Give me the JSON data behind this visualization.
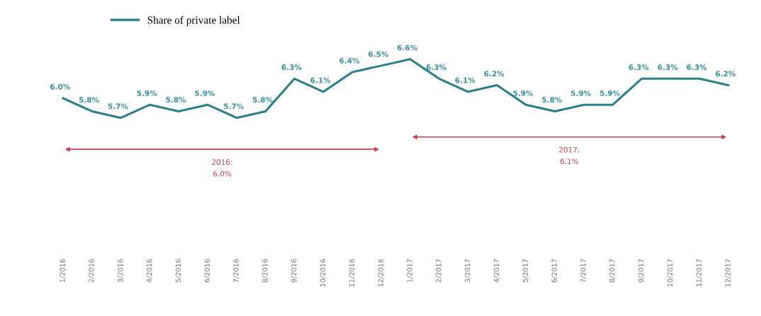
{
  "chart_data": {
    "type": "line",
    "categories": [
      "1/2016",
      "2/2016",
      "3/2016",
      "4/2016",
      "5/2016",
      "6/2016",
      "7/2016",
      "8/2016",
      "9/2016",
      "10/2016",
      "11/2016",
      "12/2016",
      "1/2017",
      "2/2017",
      "3/2017",
      "4/2017",
      "5/2017",
      "6/2017",
      "7/2017",
      "8/2017",
      "9/2017",
      "10/2017",
      "11/2017",
      "12/2017"
    ],
    "series": [
      {
        "name": "Share of private label",
        "color": "#2a7f86",
        "values": [
          6.0,
          5.8,
          5.7,
          5.9,
          5.8,
          5.9,
          5.7,
          5.8,
          6.3,
          6.1,
          6.4,
          6.5,
          6.6,
          6.3,
          6.1,
          6.2,
          5.9,
          5.8,
          5.9,
          5.9,
          6.3,
          6.3,
          6.3,
          6.2
        ],
        "value_labels": [
          "6.0%",
          "5.8%",
          "5.7%",
          "5.9%",
          "5.8%",
          "5.9%",
          "5.7%",
          "5.8%",
          "6.3%",
          "6.1%",
          "6.4%",
          "6.5%",
          "6.6%",
          "6.3%",
          "6.1%",
          "6.2%",
          "5.9%",
          "5.8%",
          "5.9%",
          "5.9%",
          "6.3%",
          "6.3%",
          "6.3%",
          "6.2%"
        ]
      }
    ],
    "annotations": [
      "2016:\n6.0%",
      "2017:\n6.1%"
    ],
    "legend": "top left",
    "grid": false,
    "marker": "none",
    "line_style": "solid"
  }
}
